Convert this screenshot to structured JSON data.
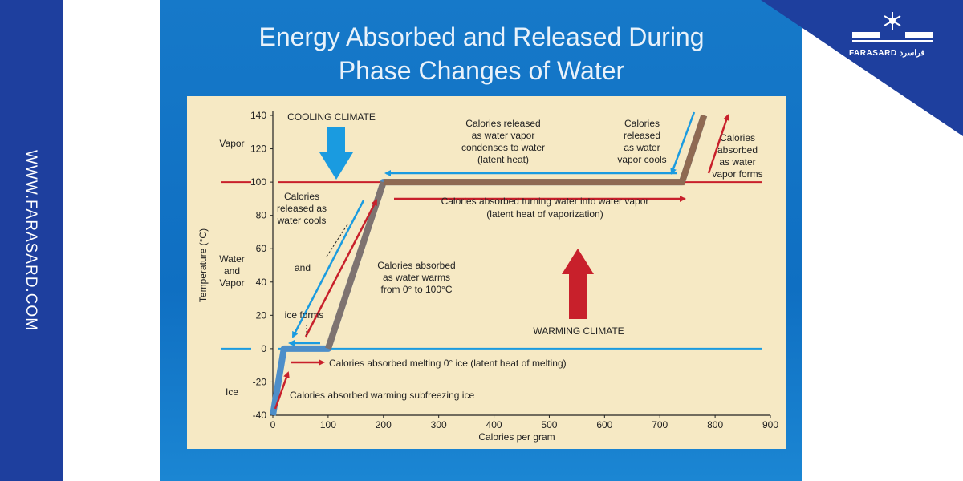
{
  "side_url": "WWW.FARASARD.COM",
  "brand": {
    "name": "FARASARD",
    "script": "فراسرد"
  },
  "colors": {
    "band": "#1e3f9e",
    "slide": "#1679c9",
    "panel": "#f6e9c4",
    "cooling": "#1a9be0",
    "warming": "#c8202b",
    "curve": "#8f6a52"
  },
  "icons": [
    "snowflake-icon"
  ],
  "chart_data": {
    "type": "line",
    "title": "Energy Absorbed and Released During Phase Changes of Water",
    "title_lines": [
      "Energy Absorbed and Released During",
      "Phase Changes of Water"
    ],
    "xlabel": "Calories per gram",
    "ylabel": "Temperature (°C)",
    "xlim": [
      0,
      900
    ],
    "ylim": [
      -40,
      140
    ],
    "xticks": [
      0,
      100,
      200,
      300,
      400,
      500,
      600,
      700,
      800,
      900
    ],
    "yticks": [
      -40,
      -20,
      0,
      20,
      40,
      60,
      80,
      100,
      120,
      140
    ],
    "series": [
      {
        "values": [
          [
            0,
            -40
          ],
          [
            20,
            0
          ],
          [
            100,
            0
          ],
          [
            200,
            100
          ],
          [
            740,
            100
          ],
          [
            780,
            140
          ]
        ]
      }
    ],
    "reference_lines": [
      {
        "y": 0,
        "color": "#1a9be0"
      },
      {
        "y": 100,
        "color": "#c8202b"
      }
    ],
    "phase_labels": [
      {
        "lines": [
          "Vapor"
        ]
      },
      {
        "lines": [
          "Water",
          "and",
          "Vapor"
        ]
      },
      {
        "lines": [
          "Ice"
        ]
      }
    ],
    "annotations": {
      "cooling_climate": "COOLING CLIMATE",
      "warming_climate": "WARMING CLIMATE",
      "condense": [
        "Calories released",
        "as water vapor",
        "condenses to water",
        "(latent heat)"
      ],
      "vapor_cools": [
        "Calories",
        "released",
        "as water",
        "vapor cools"
      ],
      "vapor_forms": [
        "Calories",
        "absorbed",
        "as water",
        "vapor forms"
      ],
      "vaporization": [
        "Calories absorbed turning water into water vapor",
        "(latent heat of vaporization)"
      ],
      "water_cools": [
        "Calories",
        "released as",
        "water cools"
      ],
      "and": "and",
      "ice_forms": "ice forms",
      "water_warms": [
        "Calories absorbed",
        "as water warms",
        "from 0° to 100°C"
      ],
      "melting": "Calories absorbed melting 0° ice (latent heat of melting)",
      "subfreezing": "Calories absorbed warming subfreezing ice"
    }
  }
}
